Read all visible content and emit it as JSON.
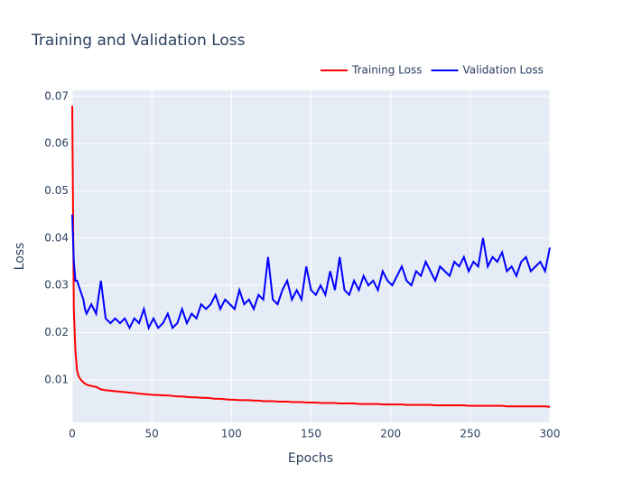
{
  "chart_data": {
    "type": "line",
    "title": "Training and Validation Loss",
    "x_label": "Epochs",
    "y_label": "Loss",
    "x": [
      0,
      1,
      2,
      3,
      4,
      5,
      6,
      7,
      8,
      9,
      12,
      15,
      18,
      21,
      24,
      27,
      30,
      33,
      36,
      39,
      42,
      45,
      48,
      51,
      54,
      57,
      60,
      63,
      66,
      69,
      72,
      75,
      78,
      81,
      84,
      87,
      90,
      93,
      96,
      99,
      102,
      105,
      108,
      111,
      114,
      117,
      120,
      123,
      126,
      129,
      132,
      135,
      138,
      141,
      144,
      147,
      150,
      153,
      156,
      159,
      162,
      165,
      168,
      171,
      174,
      177,
      180,
      183,
      186,
      189,
      192,
      195,
      198,
      201,
      204,
      207,
      210,
      213,
      216,
      219,
      222,
      225,
      228,
      231,
      234,
      237,
      240,
      243,
      246,
      249,
      252,
      255,
      258,
      261,
      264,
      267,
      270,
      273,
      276,
      279,
      282,
      285,
      288,
      291,
      294,
      297,
      300
    ],
    "series": [
      {
        "name": "Training Loss",
        "color": "#ff0000",
        "values": [
          0.068,
          0.025,
          0.016,
          0.012,
          0.0108,
          0.0102,
          0.0098,
          0.0095,
          0.0092,
          0.009,
          0.0087,
          0.0085,
          0.008,
          0.0078,
          0.0077,
          0.0076,
          0.0075,
          0.0074,
          0.0073,
          0.0072,
          0.0071,
          0.007,
          0.0069,
          0.0068,
          0.0068,
          0.0067,
          0.0067,
          0.0066,
          0.0065,
          0.0065,
          0.0064,
          0.0063,
          0.0063,
          0.0062,
          0.0062,
          0.0061,
          0.006,
          0.006,
          0.0059,
          0.0058,
          0.0058,
          0.0057,
          0.0057,
          0.0057,
          0.0056,
          0.0056,
          0.0055,
          0.0055,
          0.0055,
          0.0054,
          0.0054,
          0.0054,
          0.0053,
          0.0053,
          0.0053,
          0.0052,
          0.0052,
          0.0052,
          0.0051,
          0.0051,
          0.0051,
          0.0051,
          0.005,
          0.005,
          0.005,
          0.005,
          0.0049,
          0.0049,
          0.0049,
          0.0049,
          0.0049,
          0.0048,
          0.0048,
          0.0048,
          0.0048,
          0.0048,
          0.0047,
          0.0047,
          0.0047,
          0.0047,
          0.0047,
          0.0047,
          0.0046,
          0.0046,
          0.0046,
          0.0046,
          0.0046,
          0.0046,
          0.0046,
          0.0045,
          0.0045,
          0.0045,
          0.0045,
          0.0045,
          0.0045,
          0.0045,
          0.0045,
          0.0044,
          0.0044,
          0.0044,
          0.0044,
          0.0044,
          0.0044,
          0.0044,
          0.0044,
          0.0044,
          0.0043
        ]
      },
      {
        "name": "Validation Loss",
        "color": "#0000ff",
        "values": [
          0.045,
          0.035,
          0.031,
          0.031,
          0.03,
          0.029,
          0.028,
          0.027,
          0.025,
          0.024,
          0.026,
          0.024,
          0.031,
          0.023,
          0.022,
          0.023,
          0.022,
          0.023,
          0.021,
          0.023,
          0.022,
          0.025,
          0.021,
          0.023,
          0.021,
          0.022,
          0.024,
          0.021,
          0.022,
          0.025,
          0.022,
          0.024,
          0.023,
          0.026,
          0.025,
          0.026,
          0.028,
          0.025,
          0.027,
          0.026,
          0.025,
          0.029,
          0.026,
          0.027,
          0.025,
          0.028,
          0.027,
          0.036,
          0.027,
          0.026,
          0.029,
          0.031,
          0.027,
          0.029,
          0.027,
          0.034,
          0.029,
          0.028,
          0.03,
          0.028,
          0.033,
          0.029,
          0.036,
          0.029,
          0.028,
          0.031,
          0.029,
          0.032,
          0.03,
          0.031,
          0.029,
          0.033,
          0.031,
          0.03,
          0.032,
          0.034,
          0.031,
          0.03,
          0.033,
          0.032,
          0.035,
          0.033,
          0.031,
          0.034,
          0.033,
          0.032,
          0.035,
          0.034,
          0.036,
          0.033,
          0.035,
          0.034,
          0.04,
          0.034,
          0.036,
          0.035,
          0.037,
          0.033,
          0.034,
          0.032,
          0.035,
          0.036,
          0.033,
          0.034,
          0.035,
          0.033,
          0.038
        ]
      }
    ],
    "xlim": [
      0,
      300
    ],
    "xticks": [
      0,
      50,
      100,
      150,
      200,
      250,
      300
    ],
    "ylim": [
      0.001,
      0.0713
    ],
    "yticks": [
      0.01,
      0.02,
      0.03,
      0.04,
      0.05,
      0.06,
      0.07
    ],
    "grid": true,
    "legend": "top-right"
  }
}
